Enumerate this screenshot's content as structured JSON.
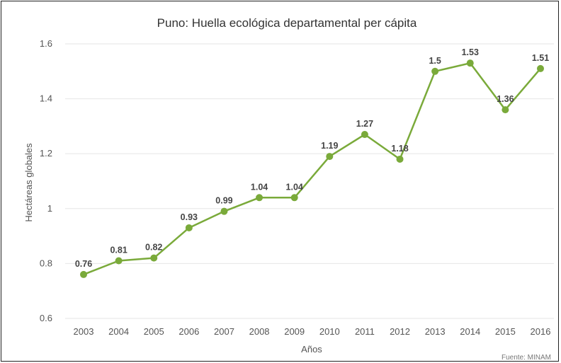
{
  "chart_data": {
    "type": "line",
    "title": "Puno: Huella ecológica departamental per cápita",
    "xlabel": "Años",
    "ylabel": "Hectáreas globales",
    "source": "Fuente: MINAM",
    "ylim": [
      0.6,
      1.6
    ],
    "yticks": [
      "0.6",
      "0.8",
      "1",
      "1.2",
      "1.4",
      "1.6"
    ],
    "yticks_values": [
      0.6,
      0.8,
      1.0,
      1.2,
      1.4,
      1.6
    ],
    "categories": [
      "2003",
      "2004",
      "2005",
      "2006",
      "2007",
      "2008",
      "2009",
      "2010",
      "2011",
      "2012",
      "2013",
      "2014",
      "2015",
      "2016"
    ],
    "series": [
      {
        "values": [
          0.76,
          0.81,
          0.82,
          0.93,
          0.99,
          1.04,
          1.04,
          1.19,
          1.27,
          1.18,
          1.5,
          1.53,
          1.36,
          1.51
        ],
        "labels": [
          "0.76",
          "0.81",
          "0.82",
          "0.93",
          "0.99",
          "1.04",
          "1.04",
          "1.19",
          "1.27",
          "1.18",
          "1.5",
          "1.53",
          "1.36",
          "1.51"
        ],
        "color": "#7aaa3a"
      }
    ],
    "grid": true,
    "legend": "none"
  }
}
